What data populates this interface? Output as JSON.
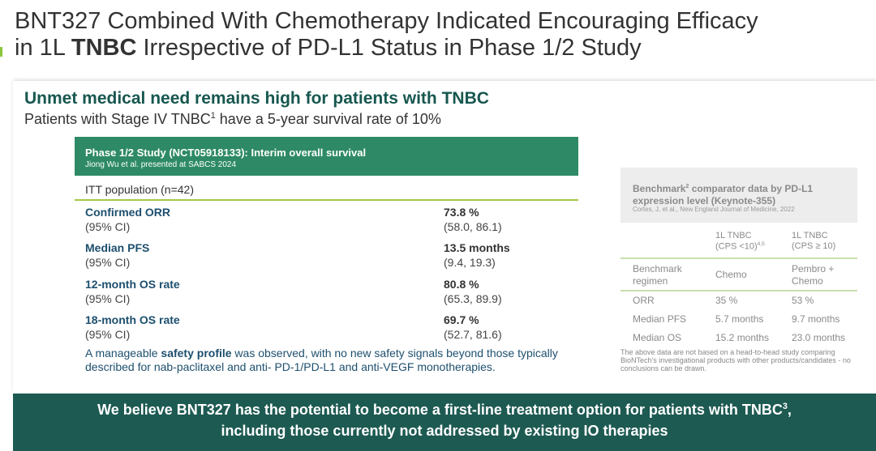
{
  "header": {
    "title_line1": "BNT327 Combined With Chemotherapy Indicated Encouraging Efficacy",
    "title_line2": [
      "in 1L ",
      "TNBC",
      " Irrespective of PD-L1 Status in Phase 1/2 Study"
    ]
  },
  "unmet": {
    "heading": "Unmet medical need remains high for patients with TNBC",
    "subtext": [
      "Patients with Stage IV TNBC",
      "1",
      " have a 5-year survival rate of 10%"
    ]
  },
  "study": {
    "title": "Phase 1/2 Study (NCT05918133): Interim overall survival",
    "subtitle": "Jiong Wu et al. presented at SABCS 2024",
    "population": "ITT population (n=42)",
    "rows": [
      {
        "label": "Confirmed ORR",
        "ci_label": "(95% CI)",
        "value": "73.8 %",
        "ci": "(58.0, 86.1)"
      },
      {
        "label": "Median PFS",
        "ci_label": "(95% CI)",
        "value": "13.5 months",
        "ci": "(9.4, 19.3)"
      },
      {
        "label": "12-month OS rate",
        "ci_label": "(95% CI)",
        "value": "80.8 %",
        "ci": "(65.3, 89.9)"
      },
      {
        "label": "18-month OS rate",
        "ci_label": "(95% CI)",
        "value": "69.7 %",
        "ci": "(52.7, 81.6)"
      }
    ],
    "note": [
      "A manageable ",
      "safety profile",
      " was observed, with no new safety signals beyond those typically described for nab-paclitaxel and anti- PD-1/PD-L1 and anti-VEGF monotherapies."
    ]
  },
  "benchmark": {
    "title": [
      "Benchmark",
      "2",
      " comparator data by PD-L1 expression level (Keynote-355)"
    ],
    "citation": "Cortes, J, et al., New England Journal of Medicine, 2022",
    "columns": [
      {
        "line1": "1L TNBC",
        "line2": "(CPS <10)",
        "sup": "4,5"
      },
      {
        "line1": "1L TNBC",
        "line2": "(CPS ≥ 10)"
      }
    ],
    "rows": [
      [
        "Benchmark regimen",
        "Chemo",
        "Pembro + Chemo"
      ],
      [
        "ORR",
        "35 %",
        "53 %"
      ],
      [
        "Median PFS",
        "5.7 months",
        "9.7 months"
      ],
      [
        "Median OS",
        "15.2 months",
        "23.0 months"
      ]
    ],
    "disclaimer": "The above data are not based on a head-to-head study comparing BioNTech's investigational products with other products/candidates - no conclusions can be drawn."
  },
  "footer": {
    "line1": [
      "We believe BNT327 has the potential to become a first-line treatment option for patients with TNBC",
      "3",
      ","
    ],
    "line2": "including those currently not addressed by existing IO therapies"
  }
}
